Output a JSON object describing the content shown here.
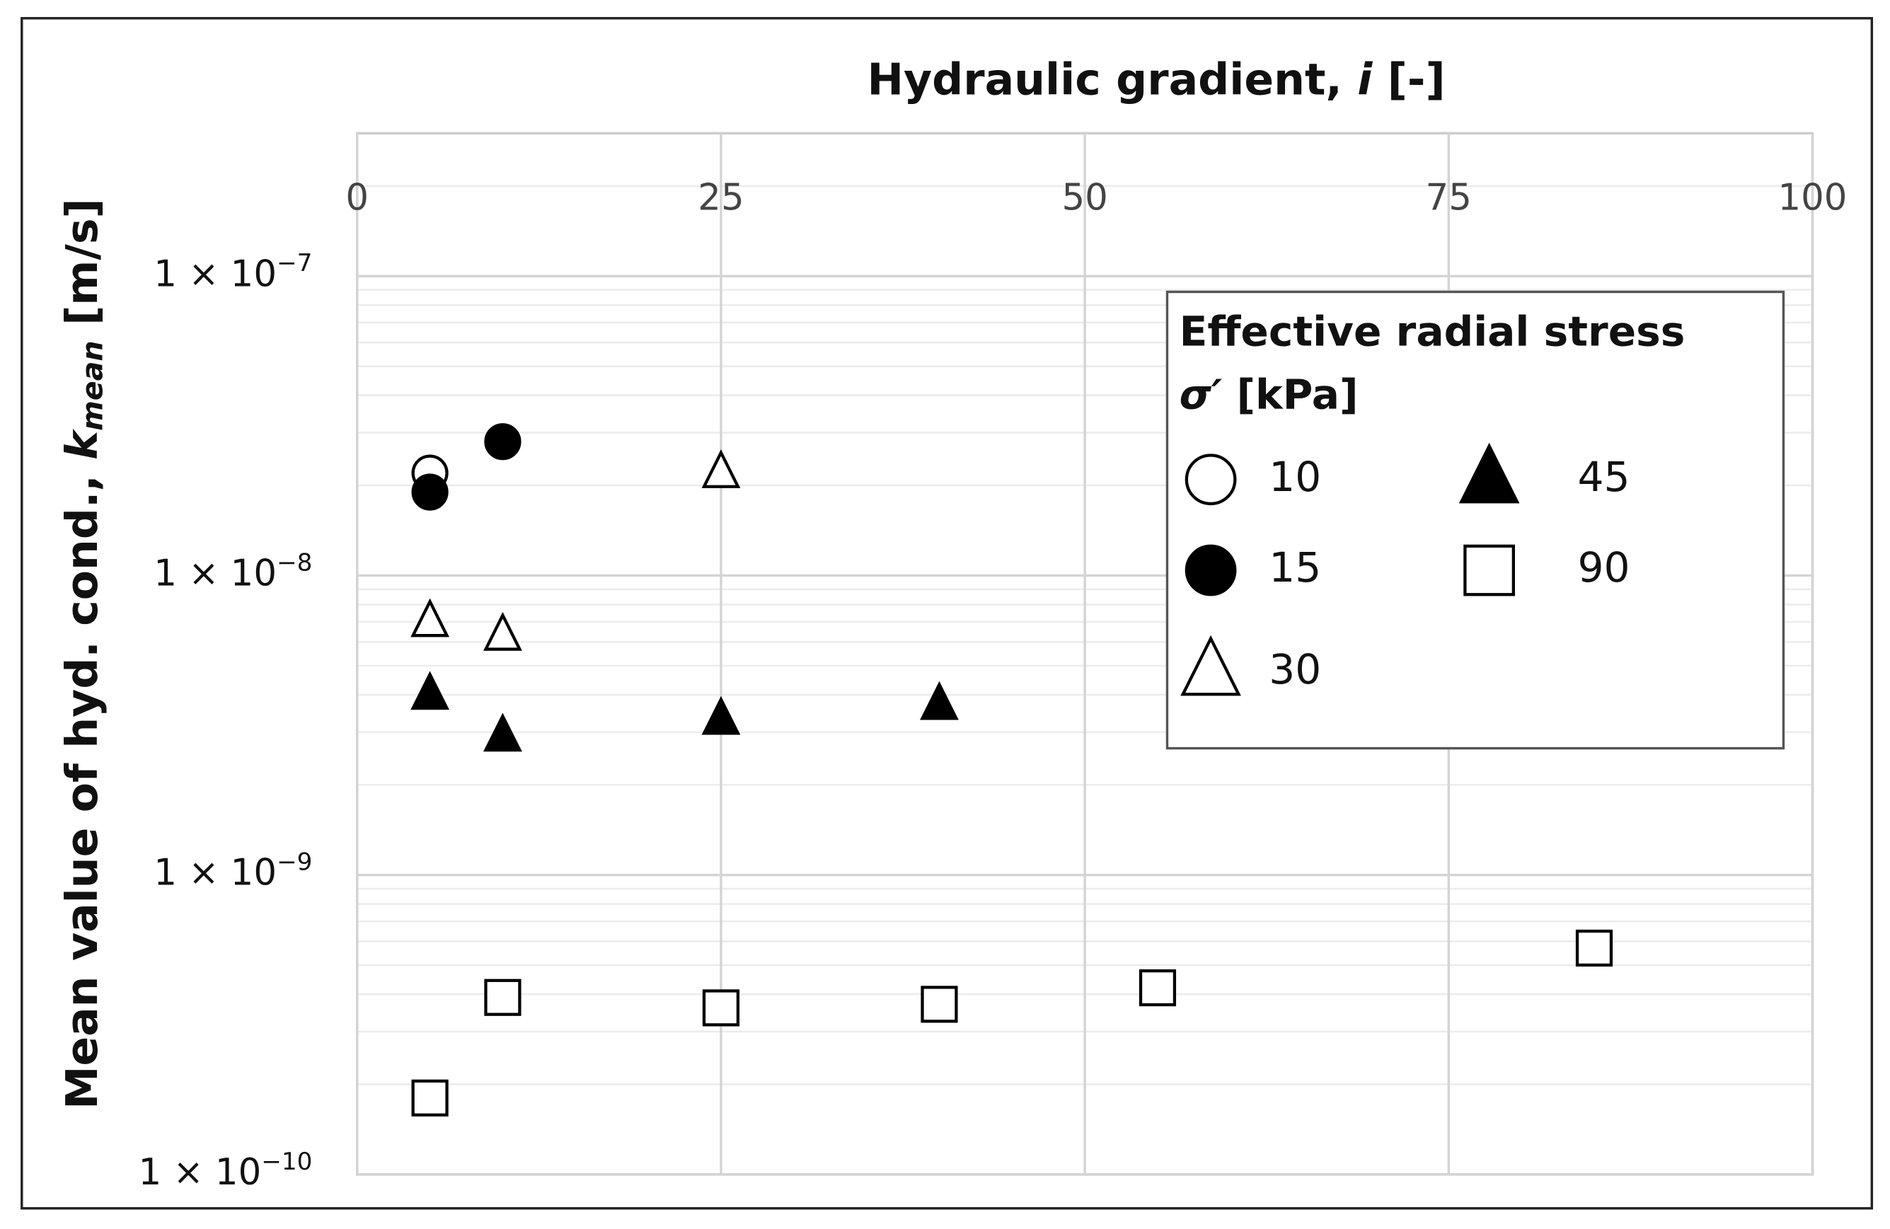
{
  "chart_data": {
    "type": "scatter",
    "x_label": [
      "Hydraulic gradient, ",
      "i",
      " [-]"
    ],
    "y_label": [
      "Mean value of hyd. cond., ",
      "k",
      "mean",
      " [m/s]"
    ],
    "legend_title": "Effective radial stress",
    "legend_subtitle": [
      "σ′",
      " [kPa]"
    ],
    "legend": "upper right",
    "grid": true,
    "minor_grid": true,
    "y_scale": "log",
    "xlim": [
      0,
      100
    ],
    "xticks": [
      0,
      25,
      50,
      75,
      100
    ],
    "ylim": [
      1e-10,
      3e-07
    ],
    "yticks": [
      {
        "value": 1e-10,
        "label": "1 × 10",
        "exponent": "−10"
      },
      {
        "value": 1e-09,
        "label": "1 × 10",
        "exponent": "−9"
      },
      {
        "value": 1e-08,
        "label": "1 × 10",
        "exponent": "−8"
      },
      {
        "value": 1e-07,
        "label": "1 × 10",
        "exponent": "−7"
      }
    ],
    "series": [
      {
        "name": "10",
        "marker": "circle-open",
        "color": "#000000",
        "x": [
          5
        ],
        "values": [
          2.2e-08
        ]
      },
      {
        "name": "15",
        "marker": "circle",
        "color": "#000000",
        "x": [
          5,
          10
        ],
        "values": [
          1.9e-08,
          2.8e-08
        ]
      },
      {
        "name": "30",
        "marker": "triangle-open",
        "color": "#000000",
        "x": [
          5,
          10,
          25
        ],
        "values": [
          7e-09,
          6.3e-09,
          2.2e-08
        ]
      },
      {
        "name": "45",
        "marker": "triangle",
        "color": "#000000",
        "x": [
          5,
          10,
          25,
          40
        ],
        "values": [
          4e-09,
          2.9e-09,
          3.3e-09,
          3.7e-09
        ]
      },
      {
        "name": "90",
        "marker": "square-open",
        "color": "#000000",
        "x": [
          5,
          10,
          25,
          40,
          55,
          85
        ],
        "values": [
          1.8e-10,
          3.9e-10,
          3.6e-10,
          3.7e-10,
          4.2e-10,
          5.7e-10
        ]
      }
    ]
  }
}
